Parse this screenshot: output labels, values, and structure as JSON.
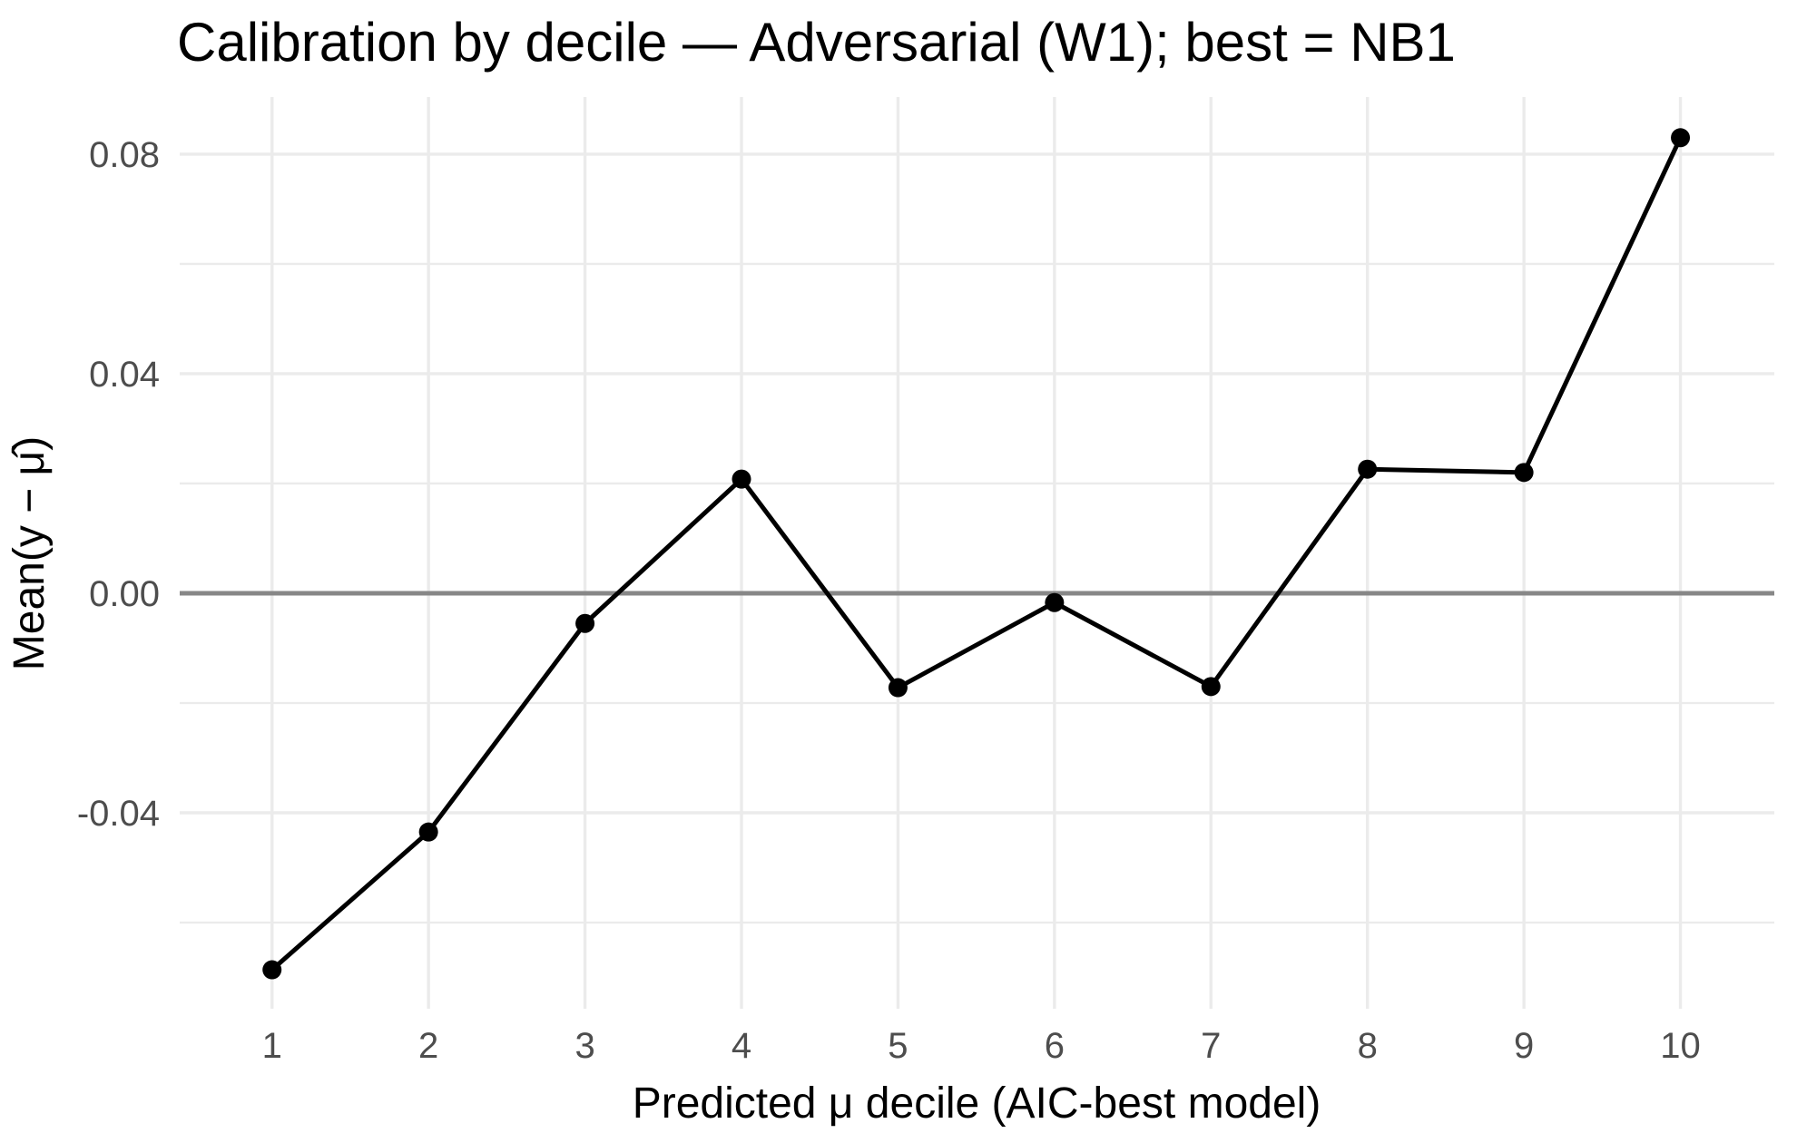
{
  "chart_data": {
    "type": "line",
    "title": "Calibration by decile — Adversarial (W1); best = NB1",
    "xlabel": "Predicted μ decile (AIC-best model)",
    "ylabel": "Mean(y − μ̂)",
    "categories": [
      1,
      2,
      3,
      4,
      5,
      6,
      7,
      8,
      9,
      10
    ],
    "values": [
      -0.0686,
      -0.0435,
      -0.0055,
      0.0208,
      -0.0172,
      -0.0017,
      -0.017,
      0.0226,
      0.022,
      0.083
    ],
    "reference_line_y": 0,
    "yticks_major": {
      "values": [
        0.08,
        0.04,
        0.0,
        -0.04
      ],
      "labels": [
        "0.08",
        "0.04",
        "0.00",
        "-0.04"
      ]
    },
    "yticks_minor": [
      0.06,
      0.02,
      -0.02,
      -0.06
    ],
    "xtick_labels": [
      "1",
      "2",
      "3",
      "4",
      "5",
      "6",
      "7",
      "8",
      "9",
      "10"
    ],
    "xlim": [
      0.41,
      10.6
    ],
    "ylim": [
      -0.0757,
      0.0904
    ],
    "grid": "on",
    "legend": "none",
    "colors": {
      "line": "#000000",
      "point": "#000000",
      "reference_line": "#878787",
      "gridline": "#ebebeb",
      "tick_label": "#4d4d4d",
      "text": "#000000",
      "background": "#ffffff"
    }
  }
}
